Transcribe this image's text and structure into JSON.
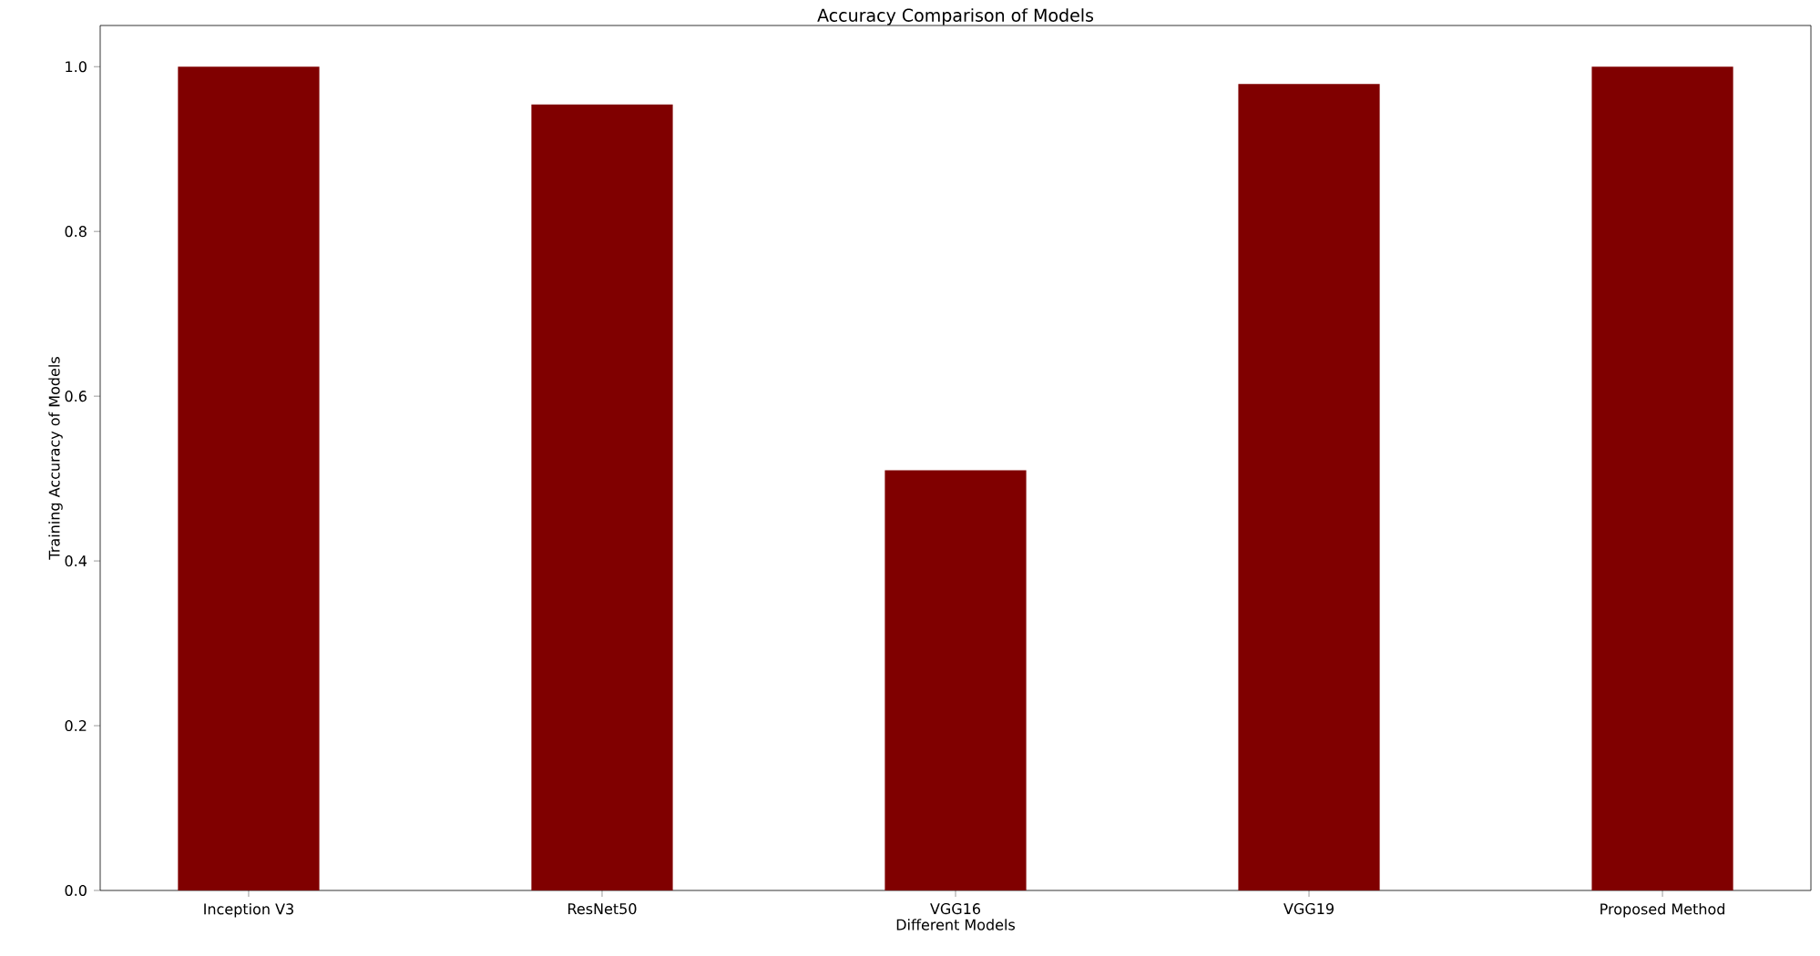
{
  "chart_data": {
    "type": "bar",
    "title": "Accuracy Comparison of Models",
    "xlabel": "Different Models",
    "ylabel": "Training Accuracy of Models",
    "categories": [
      "Inception V3",
      "ResNet50",
      "VGG16",
      "VGG19",
      "Proposed Method"
    ],
    "values": [
      1.0,
      0.954,
      0.51,
      0.979,
      1.0
    ],
    "color": "#800000",
    "ylim": [
      0,
      1.05
    ],
    "yticks": [
      {
        "value": 0,
        "label": "0.0"
      },
      0.2,
      0.4,
      0.6,
      0.8,
      {
        "value": 1,
        "label": "1.0"
      }
    ],
    "grid": false
  }
}
